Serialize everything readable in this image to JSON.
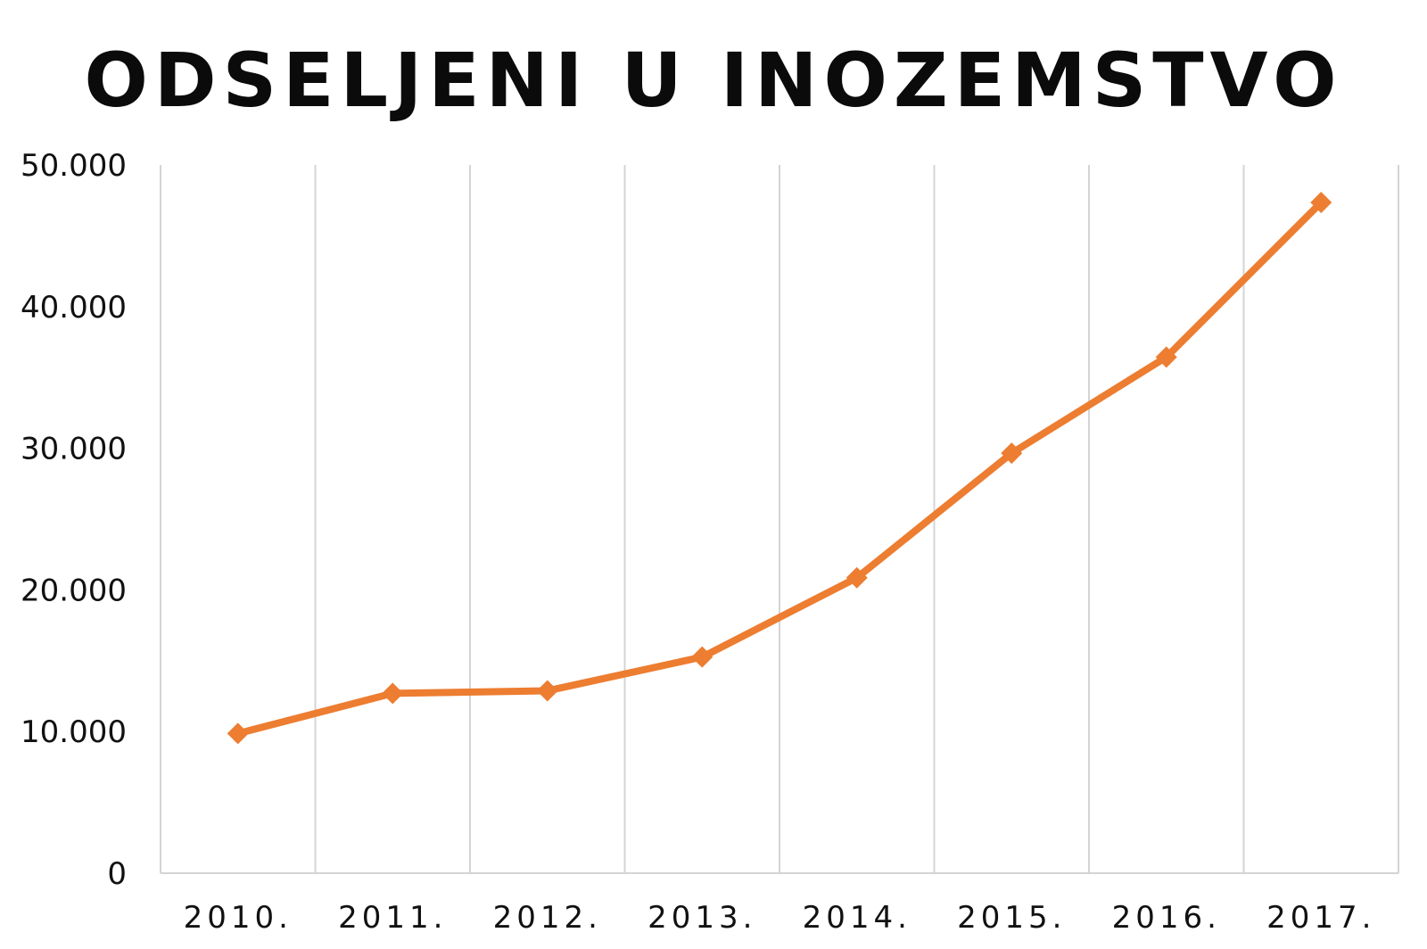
{
  "chart_data": {
    "type": "line",
    "title": "ODSELJENI U INOZEMSTVO",
    "categories": [
      "2010.",
      "2011.",
      "2012.",
      "2013.",
      "2014.",
      "2015.",
      "2016.",
      "2017."
    ],
    "series": [
      {
        "values": [
          9860,
          12699,
          12878,
          15262,
          20858,
          29651,
          36436,
          47352
        ],
        "color": "#ED7D31",
        "marker": "diamond"
      }
    ],
    "ylim": [
      0,
      50000
    ],
    "yticks": [
      0,
      10000,
      20000,
      30000,
      40000,
      50000
    ],
    "ytick_labels": [
      "0",
      "10.000",
      "20.000",
      "30.000",
      "40.000",
      "50.000"
    ],
    "grid": "vertical",
    "legend": "none"
  }
}
